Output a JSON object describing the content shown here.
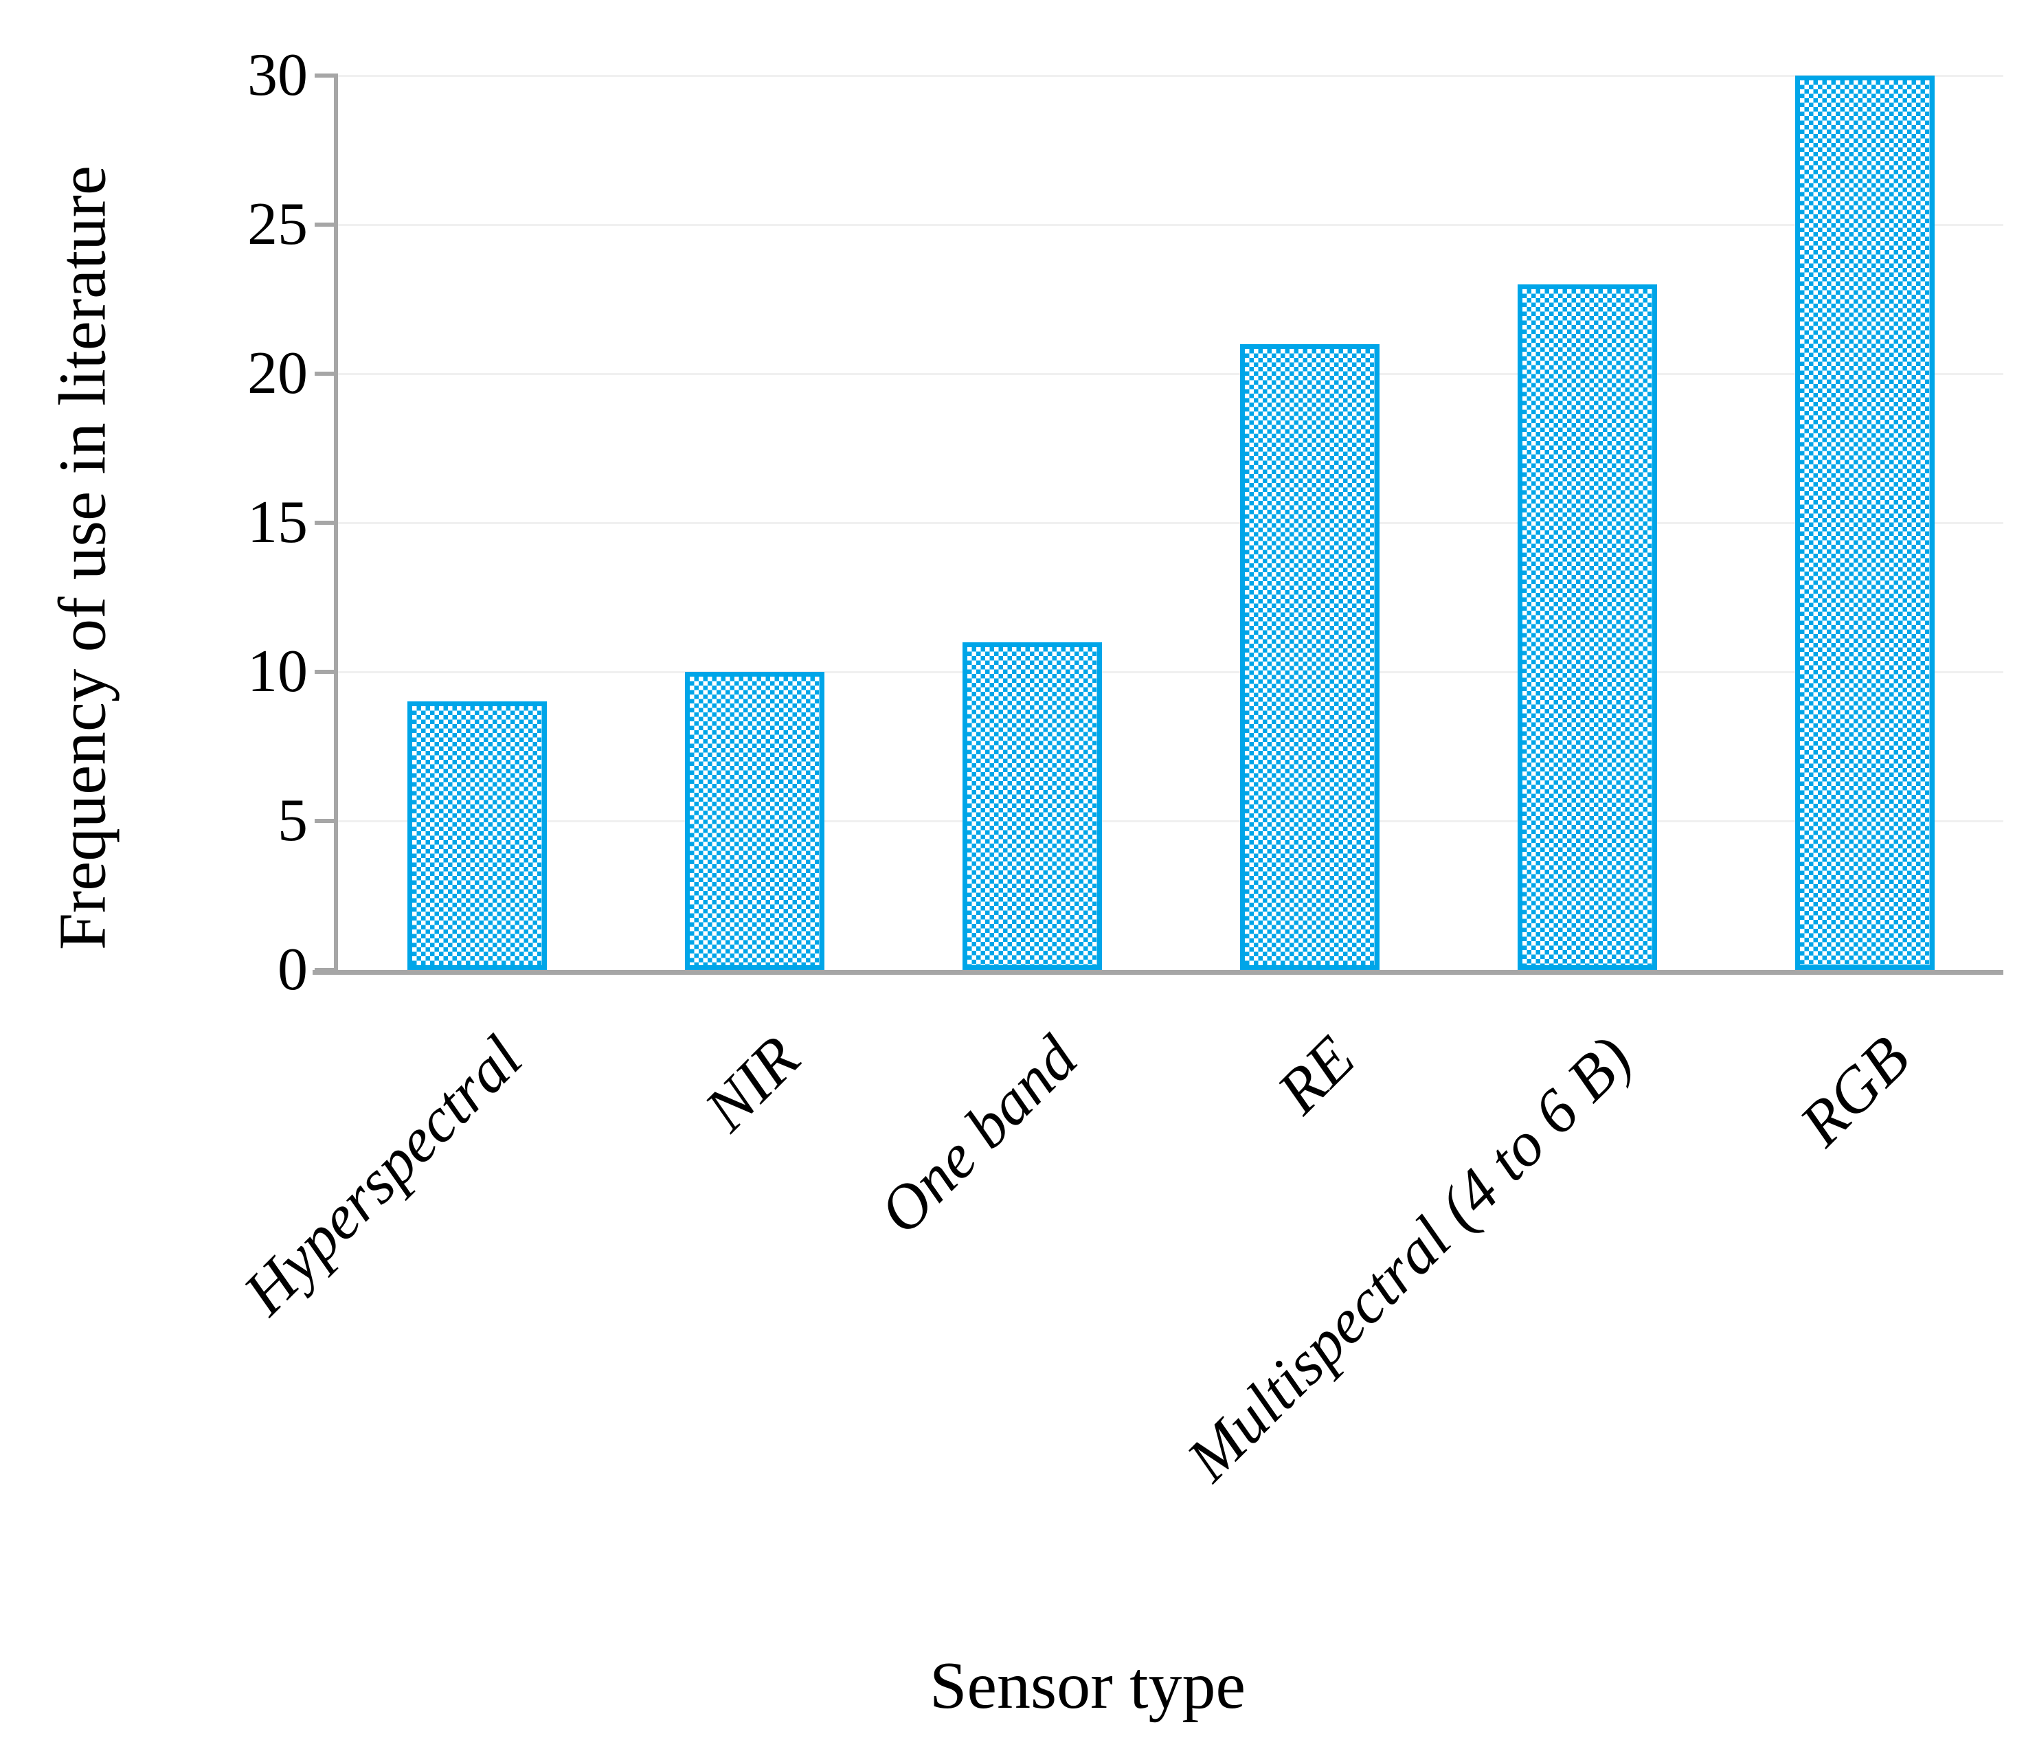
{
  "chart_data": {
    "type": "bar",
    "title": "",
    "xlabel": "Sensor type",
    "ylabel": "Frequency of use in literature",
    "categories": [
      "Hyperspectral",
      "NIR",
      "One band",
      "RE",
      "Multispectral (4 to 6 B)",
      "RGB"
    ],
    "values": [
      9,
      10,
      11,
      21,
      23,
      30
    ],
    "series": [
      {
        "name": "Frequency of use in literature",
        "values": [
          9,
          10,
          11,
          21,
          23,
          30
        ]
      }
    ],
    "ylim": [
      0,
      30
    ],
    "yticks": [
      "0",
      "5",
      "10",
      "15",
      "20",
      "25",
      "30"
    ],
    "grid": "horizontal-faint",
    "legend": "none",
    "category_label_rotation_deg": -45,
    "category_label_style": "italic",
    "colors": {
      "bar_pattern": "#00A5E8",
      "bar_border": "#00A5E8",
      "bar_pattern_background": "#FFFFFF",
      "axis_line": "#A6A6A6",
      "gridline": "#F0F0F0",
      "text": "#000000",
      "background": "#FFFFFF"
    },
    "bar_fill_pattern": "checkerboard"
  }
}
